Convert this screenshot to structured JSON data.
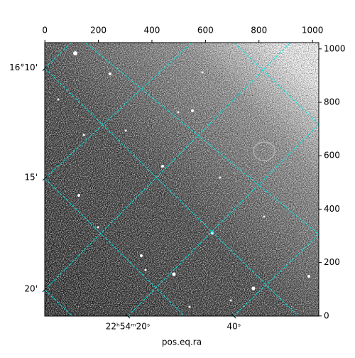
{
  "chart_data": {
    "type": "image",
    "xlabel": "pos.eq.ra",
    "xlim": [
      -0.5,
      1023.5
    ],
    "ylim": [
      -0.5,
      1023.5
    ],
    "xticks": [
      0,
      200,
      400,
      600,
      800,
      1000
    ],
    "yticks": [
      0,
      200,
      400,
      600,
      800,
      1000
    ],
    "ra_ticks": [
      {
        "value": 310,
        "label": "22ʰ54ᵐ20ˢ"
      },
      {
        "value": 706,
        "label": "40ˢ"
      }
    ],
    "dec_ticks": [
      {
        "value": 926,
        "label": "16°10'"
      },
      {
        "value": 515,
        "label": "15'"
      },
      {
        "value": 98,
        "label": "20'"
      }
    ],
    "grid_color": "#00e5e5"
  }
}
